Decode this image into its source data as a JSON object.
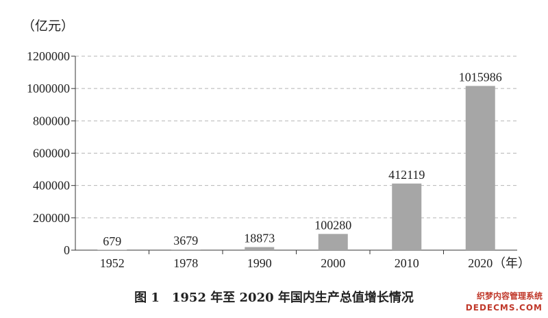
{
  "chart_data": {
    "type": "bar",
    "categories": [
      "1952",
      "1978",
      "1990",
      "2000",
      "2010",
      "2020"
    ],
    "values": [
      679,
      3679,
      18873,
      100280,
      412119,
      1015986
    ],
    "value_labels": [
      "679",
      "3679",
      "18873",
      "100280",
      "412119",
      "1015986"
    ],
    "ylabel": "（亿元）",
    "xunit": "（年）",
    "ylim": [
      0,
      1200000
    ],
    "yticks": [
      0,
      200000,
      400000,
      600000,
      800000,
      1000000,
      1200000
    ],
    "ytick_labels": [
      "0",
      "200000",
      "400000",
      "600000",
      "800000",
      "1000000",
      "1200000"
    ],
    "grid": true,
    "bar_color": "#a6a6a6",
    "caption": "图 1　1952 年至 2020 年国内生产总值增长情况"
  },
  "watermark": {
    "line1": "织梦内容管理系统",
    "line2": "DEDECMS.COM"
  }
}
